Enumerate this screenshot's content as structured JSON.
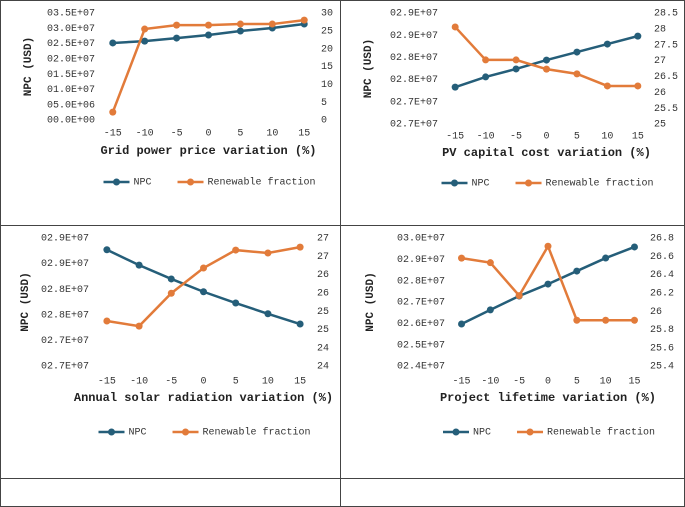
{
  "chart_data": [
    {
      "type": "line",
      "xlabel": "Grid power price variation (%)",
      "ylabel": "NPC (USD)",
      "x": [
        -15,
        -10,
        -5,
        0,
        5,
        10,
        15
      ],
      "xlim": [
        -17,
        17
      ],
      "xticks": [
        -15,
        -10,
        -5,
        0,
        5,
        10,
        15
      ],
      "ylim": [
        0,
        35000000
      ],
      "yticks": [
        {
          "value": 0,
          "label": "00.0E+00"
        },
        {
          "value": 5000000,
          "label": "05.0E+06"
        },
        {
          "value": 10000000,
          "label": "01.0E+07"
        },
        {
          "value": 15000000,
          "label": "01.5E+07"
        },
        {
          "value": 20000000,
          "label": "02.0E+07"
        },
        {
          "value": 25000000,
          "label": "02.5E+07"
        },
        {
          "value": 30000000,
          "label": "03.0E+07"
        },
        {
          "value": 35000000,
          "label": "03.5E+07"
        }
      ],
      "y2lim": [
        0,
        30
      ],
      "y2ticks": [
        0,
        5,
        10,
        15,
        20,
        25,
        30
      ],
      "legend": "bottom",
      "series": [
        {
          "name": "NPC",
          "color": "#255e79",
          "values": [
            25200000,
            25800000,
            26800000,
            27800000,
            29100000,
            30100000,
            31400000
          ]
        },
        {
          "name": "Renewable fraction",
          "color": "#e27b3a",
          "axis": "y2",
          "values": [
            2.2,
            25.5,
            26.6,
            26.6,
            26.9,
            26.9,
            28
          ]
        }
      ]
    },
    {
      "type": "line",
      "xlabel": "PV capital cost variation (%)",
      "ylabel": "NPC (USD)",
      "x": [
        -15,
        -10,
        -5,
        0,
        5,
        10,
        15
      ],
      "xlim": [
        -17,
        17
      ],
      "xticks": [
        -15,
        -10,
        -5,
        0,
        5,
        10,
        15
      ],
      "ylim": [
        27000000,
        29500000
      ],
      "yticks": [
        {
          "value": 27000000,
          "label": "02.7E+07"
        },
        {
          "value": 27500000,
          "label": "02.7E+07"
        },
        {
          "value": 28000000,
          "label": "02.8E+07"
        },
        {
          "value": 28500000,
          "label": "02.8E+07"
        },
        {
          "value": 29000000,
          "label": "02.9E+07"
        },
        {
          "value": 29500000,
          "label": "02.9E+07"
        }
      ],
      "y2lim": [
        25,
        28.5
      ],
      "y2ticks": [
        25,
        25.5,
        26,
        26.5,
        27,
        27.5,
        28,
        28.5
      ],
      "legend": "bottom",
      "series": [
        {
          "name": "NPC",
          "color": "#255e79",
          "values": [
            27830000,
            28060000,
            28240000,
            28440000,
            28620000,
            28800000,
            28980000
          ]
        },
        {
          "name": "Renewable fraction",
          "color": "#e27b3a",
          "axis": "y2",
          "values": [
            28.06,
            27.02,
            27.02,
            26.73,
            26.58,
            26.2,
            26.2
          ]
        }
      ]
    },
    {
      "type": "line",
      "xlabel": "Annual solar radiation variation (%)",
      "ylabel": "NPC (USD)",
      "x": [
        -15,
        -10,
        -5,
        0,
        5,
        10,
        15
      ],
      "xlim": [
        -17,
        17
      ],
      "xticks": [
        -15,
        -10,
        -5,
        0,
        5,
        10,
        15
      ],
      "ylim": [
        27000000,
        29500000
      ],
      "yticks": [
        {
          "value": 27000000,
          "label": "02.7E+07"
        },
        {
          "value": 27500000,
          "label": "02.7E+07"
        },
        {
          "value": 28000000,
          "label": "02.8E+07"
        },
        {
          "value": 28500000,
          "label": "02.8E+07"
        },
        {
          "value": 29000000,
          "label": "02.9E+07"
        },
        {
          "value": 29500000,
          "label": "02.9E+07"
        }
      ],
      "y2lim": [
        24,
        27.5
      ],
      "y2ticks": [
        24,
        {
          "value": 24.5,
          "label": "24"
        },
        25,
        {
          "value": 25.5,
          "label": "25"
        },
        26,
        {
          "value": 26.5,
          "label": "26"
        },
        27,
        {
          "value": 27.5,
          "label": "27"
        }
      ],
      "legend": "bottom",
      "series": [
        {
          "name": "NPC",
          "color": "#255e79",
          "values": [
            29270000,
            28970000,
            28700000,
            28450000,
            28230000,
            28020000,
            27820000
          ]
        },
        {
          "name": "Renewable fraction",
          "color": "#e27b3a",
          "axis": "y2",
          "values": [
            25.23,
            25.09,
            25.99,
            26.68,
            27.17,
            27.09,
            27.25
          ]
        }
      ]
    },
    {
      "type": "line",
      "xlabel": "Project lifetime variation (%)",
      "ylabel": "NPC (USD)",
      "x": [
        -15,
        -10,
        -5,
        0,
        5,
        10,
        15
      ],
      "xlim": [
        -17,
        17
      ],
      "xticks": [
        -15,
        -10,
        -5,
        0,
        5,
        10,
        15
      ],
      "ylim": [
        24000000,
        30000000
      ],
      "yticks": [
        {
          "value": 24000000,
          "label": "02.4E+07"
        },
        {
          "value": 25000000,
          "label": "02.5E+07"
        },
        {
          "value": 26000000,
          "label": "02.6E+07"
        },
        {
          "value": 27000000,
          "label": "02.7E+07"
        },
        {
          "value": 28000000,
          "label": "02.8E+07"
        },
        {
          "value": 29000000,
          "label": "02.9E+07"
        },
        {
          "value": 30000000,
          "label": "03.0E+07"
        }
      ],
      "y2lim": [
        25.4,
        26.8
      ],
      "y2ticks": [
        25.4,
        25.6,
        25.8,
        26,
        26.2,
        26.4,
        26.6,
        26.8
      ],
      "legend": "bottom",
      "series": [
        {
          "name": "NPC",
          "color": "#255e79",
          "values": [
            25970000,
            26630000,
            27280000,
            27840000,
            28450000,
            29060000,
            29580000
          ]
        },
        {
          "name": "Renewable fraction",
          "color": "#e27b3a",
          "axis": "y2",
          "values": [
            26.58,
            26.53,
            26.17,
            26.71,
            25.9,
            25.9,
            25.9
          ]
        }
      ]
    }
  ]
}
